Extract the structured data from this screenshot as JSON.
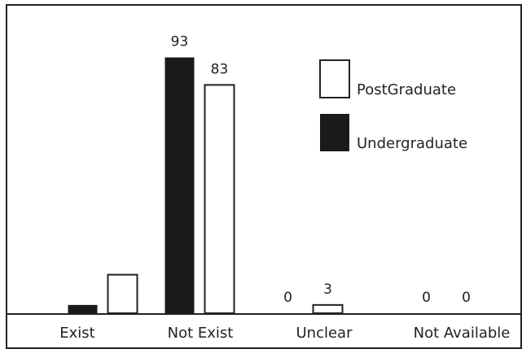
{
  "chart_data": {
    "type": "bar",
    "categories": [
      "Exist",
      "Not Exist",
      "Unclear",
      "Not Available"
    ],
    "series": [
      {
        "name": "Undergraduate",
        "values": [
          3,
          93,
          0,
          0
        ],
        "fill": "#1a1a1a",
        "labels_shown": [
          false,
          true,
          true,
          true
        ]
      },
      {
        "name": "PostGraduate",
        "values": [
          14,
          83,
          3,
          0
        ],
        "fill": "#ffffff",
        "labels_shown": [
          false,
          true,
          true,
          true
        ]
      }
    ],
    "ylim": [
      0,
      105
    ],
    "grid": false,
    "legend": {
      "placement": "top-right",
      "order": [
        "PostGraduate",
        "Undergraduate"
      ]
    },
    "colors": {
      "axis": "#222222",
      "dark": "#1a1a1a",
      "light": "#ffffff"
    }
  }
}
